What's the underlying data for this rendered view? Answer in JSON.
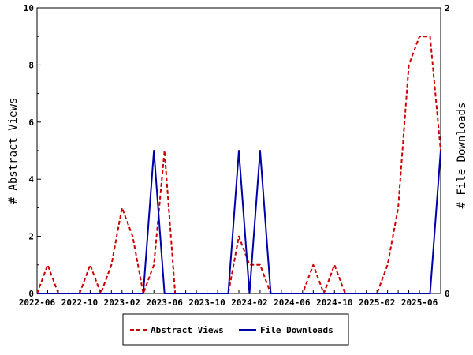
{
  "chart_data": {
    "type": "line",
    "title": "",
    "ylabel": "# Abstract Views",
    "y2label": "# File Downloads",
    "ylim": [
      0,
      10
    ],
    "y2lim": [
      0,
      2
    ],
    "y_ticks": [
      "0",
      "2",
      "4",
      "6",
      "8",
      "10"
    ],
    "y2_ticks": [
      "0",
      "2"
    ],
    "x_ticks": [
      "2022-06",
      "2022-10",
      "2023-02",
      "2023-06",
      "2023-10",
      "2024-02",
      "2024-06",
      "2024-10",
      "2025-02",
      "2025-06"
    ],
    "x": [
      "2022-06",
      "2022-07",
      "2022-08",
      "2022-09",
      "2022-10",
      "2022-11",
      "2022-12",
      "2023-01",
      "2023-02",
      "2023-03",
      "2023-04",
      "2023-05",
      "2023-06",
      "2023-07",
      "2023-08",
      "2023-09",
      "2023-10",
      "2023-11",
      "2023-12",
      "2024-01",
      "2024-02",
      "2024-03",
      "2024-04",
      "2024-05",
      "2024-06",
      "2024-07",
      "2024-08",
      "2024-09",
      "2024-10",
      "2024-11",
      "2024-12",
      "2025-01",
      "2025-02",
      "2025-03",
      "2025-04",
      "2025-05",
      "2025-06",
      "2025-07",
      "2025-08"
    ],
    "series": [
      {
        "name": "Abstract Views",
        "axis": "left",
        "color": "#cc0000",
        "style": "dashed",
        "values": [
          0,
          1,
          0,
          0,
          0,
          1,
          0,
          1,
          3,
          2,
          0,
          1,
          5,
          0,
          0,
          0,
          0,
          0,
          0,
          2,
          1,
          1,
          0,
          0,
          0,
          0,
          1,
          0,
          1,
          0,
          0,
          0,
          0,
          1,
          3,
          8,
          9,
          9,
          5
        ]
      },
      {
        "name": "File Downloads",
        "axis": "right",
        "color": "#0000aa",
        "style": "solid",
        "values": [
          0,
          0,
          0,
          0,
          0,
          0,
          0,
          0,
          0,
          0,
          0,
          1,
          0,
          0,
          0,
          0,
          0,
          0,
          0,
          1,
          0,
          1,
          0,
          0,
          0,
          0,
          0,
          0,
          0,
          0,
          0,
          0,
          0,
          0,
          0,
          0,
          0,
          0,
          1
        ]
      }
    ],
    "legend_position": "bottom",
    "grid": false
  }
}
